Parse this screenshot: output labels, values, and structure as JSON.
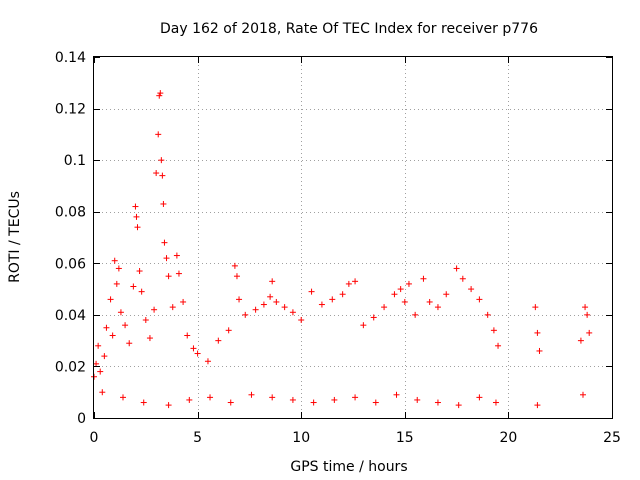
{
  "chart_data": {
    "type": "scatter",
    "title": "Day 162 of 2018, Rate Of TEC Index for receiver p776",
    "xlabel": "GPS time / hours",
    "ylabel": "ROTI / TECUs",
    "xlim": [
      0,
      25
    ],
    "ylim": [
      0,
      0.14
    ],
    "xticks": [
      0,
      5,
      10,
      15,
      20,
      25
    ],
    "xtick_labels": [
      "0",
      "5",
      "10",
      "15",
      "20",
      "25"
    ],
    "yticks": [
      0,
      0.02,
      0.04,
      0.06,
      0.08,
      0.1,
      0.12,
      0.14
    ],
    "ytick_labels": [
      "0",
      "0.02",
      "0.04",
      "0.06",
      "0.08",
      "0.1",
      "0.12",
      "0.14"
    ],
    "grid": true,
    "marker": "+",
    "color": "#ff0000",
    "series": [
      {
        "name": "ROTI",
        "points": [
          [
            0.0,
            0.016
          ],
          [
            0.1,
            0.021
          ],
          [
            0.2,
            0.028
          ],
          [
            0.3,
            0.018
          ],
          [
            0.5,
            0.024
          ],
          [
            0.6,
            0.035
          ],
          [
            0.8,
            0.046
          ],
          [
            0.9,
            0.032
          ],
          [
            1.0,
            0.061
          ],
          [
            1.1,
            0.052
          ],
          [
            1.2,
            0.058
          ],
          [
            1.3,
            0.041
          ],
          [
            1.5,
            0.036
          ],
          [
            1.7,
            0.029
          ],
          [
            1.9,
            0.051
          ],
          [
            2.0,
            0.082
          ],
          [
            2.05,
            0.078
          ],
          [
            2.1,
            0.074
          ],
          [
            2.2,
            0.057
          ],
          [
            2.3,
            0.049
          ],
          [
            2.5,
            0.038
          ],
          [
            2.7,
            0.031
          ],
          [
            2.9,
            0.042
          ],
          [
            3.0,
            0.095
          ],
          [
            3.1,
            0.11
          ],
          [
            3.15,
            0.125
          ],
          [
            3.2,
            0.126
          ],
          [
            3.25,
            0.1
          ],
          [
            3.3,
            0.094
          ],
          [
            3.35,
            0.083
          ],
          [
            3.4,
            0.068
          ],
          [
            3.5,
            0.062
          ],
          [
            3.6,
            0.055
          ],
          [
            3.8,
            0.043
          ],
          [
            4.0,
            0.063
          ],
          [
            4.1,
            0.056
          ],
          [
            4.3,
            0.045
          ],
          [
            4.5,
            0.032
          ],
          [
            4.8,
            0.027
          ],
          [
            5.0,
            0.025
          ],
          [
            5.5,
            0.022
          ],
          [
            6.0,
            0.03
          ],
          [
            6.5,
            0.034
          ],
          [
            6.8,
            0.059
          ],
          [
            6.9,
            0.055
          ],
          [
            7.0,
            0.046
          ],
          [
            7.3,
            0.04
          ],
          [
            7.8,
            0.042
          ],
          [
            8.2,
            0.044
          ],
          [
            8.5,
            0.047
          ],
          [
            8.6,
            0.053
          ],
          [
            8.8,
            0.045
          ],
          [
            9.2,
            0.043
          ],
          [
            9.6,
            0.041
          ],
          [
            10.0,
            0.038
          ],
          [
            10.5,
            0.049
          ],
          [
            11.0,
            0.044
          ],
          [
            11.5,
            0.046
          ],
          [
            12.0,
            0.048
          ],
          [
            12.3,
            0.052
          ],
          [
            12.6,
            0.053
          ],
          [
            13.0,
            0.036
          ],
          [
            13.5,
            0.039
          ],
          [
            14.0,
            0.043
          ],
          [
            14.5,
            0.048
          ],
          [
            14.8,
            0.05
          ],
          [
            15.0,
            0.045
          ],
          [
            15.2,
            0.052
          ],
          [
            15.5,
            0.04
          ],
          [
            15.9,
            0.054
          ],
          [
            16.2,
            0.045
          ],
          [
            16.6,
            0.043
          ],
          [
            17.0,
            0.048
          ],
          [
            17.5,
            0.058
          ],
          [
            17.8,
            0.054
          ],
          [
            18.2,
            0.05
          ],
          [
            18.6,
            0.046
          ],
          [
            19.0,
            0.04
          ],
          [
            19.3,
            0.034
          ],
          [
            19.5,
            0.028
          ],
          [
            21.3,
            0.043
          ],
          [
            21.4,
            0.033
          ],
          [
            21.5,
            0.026
          ],
          [
            23.5,
            0.03
          ],
          [
            23.7,
            0.043
          ],
          [
            23.8,
            0.04
          ],
          [
            23.9,
            0.033
          ],
          [
            0.4,
            0.01
          ],
          [
            1.4,
            0.008
          ],
          [
            2.4,
            0.006
          ],
          [
            3.6,
            0.005
          ],
          [
            4.6,
            0.007
          ],
          [
            5.6,
            0.008
          ],
          [
            6.6,
            0.006
          ],
          [
            7.6,
            0.009
          ],
          [
            8.6,
            0.008
          ],
          [
            9.6,
            0.007
          ],
          [
            10.6,
            0.006
          ],
          [
            11.6,
            0.007
          ],
          [
            12.6,
            0.008
          ],
          [
            13.6,
            0.006
          ],
          [
            14.6,
            0.009
          ],
          [
            15.6,
            0.007
          ],
          [
            16.6,
            0.006
          ],
          [
            17.6,
            0.005
          ],
          [
            18.6,
            0.008
          ],
          [
            19.4,
            0.006
          ],
          [
            21.4,
            0.005
          ],
          [
            23.6,
            0.009
          ]
        ]
      }
    ]
  }
}
